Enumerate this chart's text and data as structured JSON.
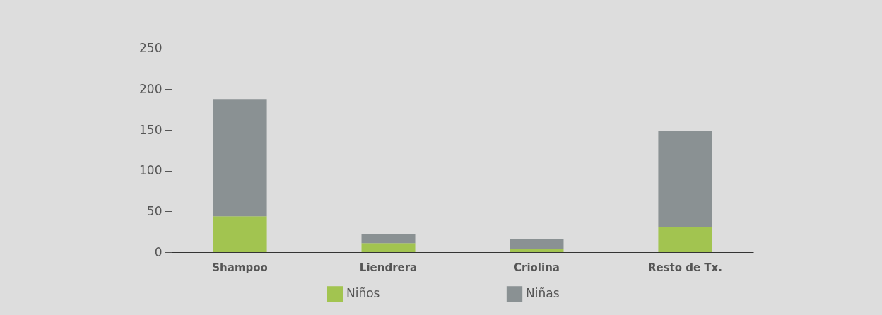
{
  "chart_data": {
    "type": "bar",
    "stacked": true,
    "categories": [
      "Shampoo",
      "Liendrera",
      "Criolina",
      "Resto de Tx."
    ],
    "series": [
      {
        "name": "Niños",
        "color": "#a2c450",
        "values": [
          44,
          11,
          4,
          31
        ]
      },
      {
        "name": "Niñas",
        "color": "#8a9193",
        "values": [
          144,
          11,
          12,
          118
        ]
      }
    ],
    "ylim": [
      0,
      275
    ],
    "yticks": [
      0,
      50,
      100,
      150,
      200,
      250
    ],
    "legend": "bottom"
  }
}
